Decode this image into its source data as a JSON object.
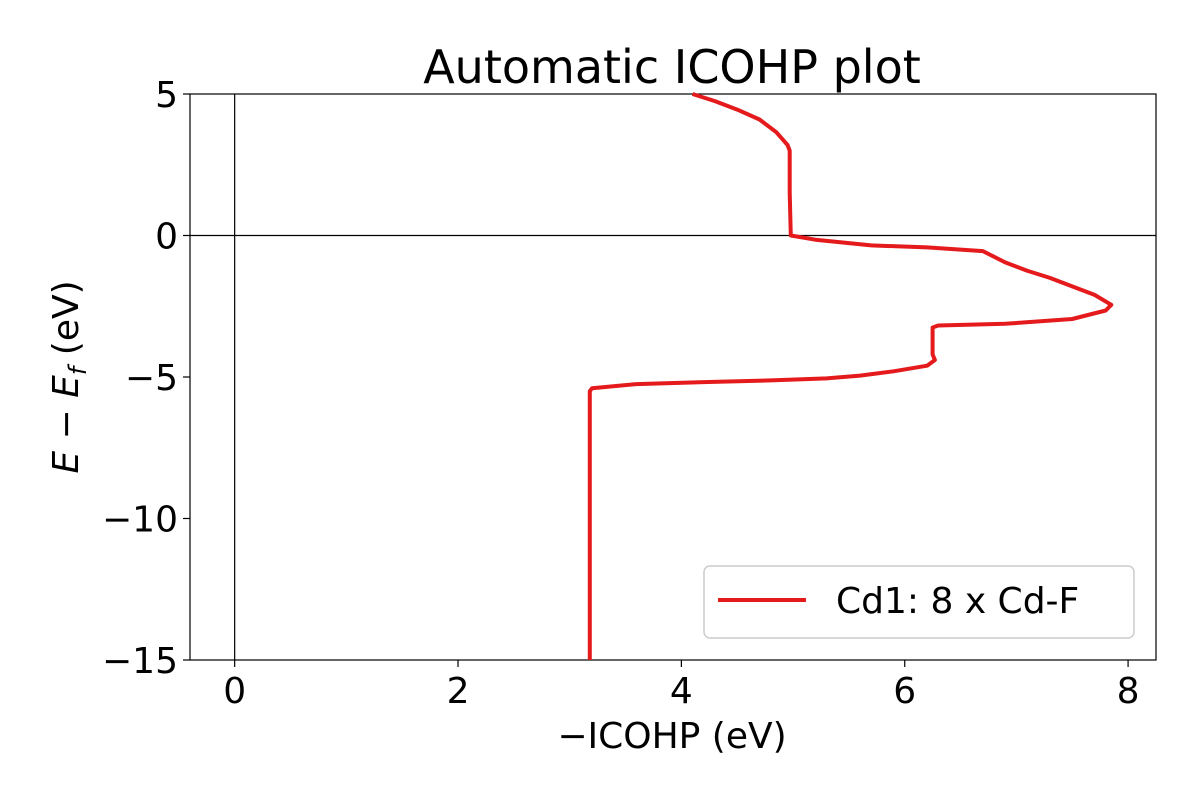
{
  "chart_data": {
    "type": "line",
    "title": "Automatic ICOHP plot",
    "xlabel": "−ICOHP (eV)",
    "ylabel": "E − E_f (eV)",
    "xlim": [
      -0.4,
      8.25
    ],
    "ylim": [
      -15,
      5
    ],
    "xticks": [
      0,
      2,
      4,
      6,
      8
    ],
    "xtick_labels": [
      "0",
      "2",
      "4",
      "6",
      "8"
    ],
    "yticks": [
      5,
      0,
      -5,
      -10,
      -15
    ],
    "ytick_labels": [
      "5",
      "0",
      "−5",
      "−10",
      "−15"
    ],
    "grid": false,
    "zero_lines": true,
    "legend_position": "lower-right",
    "series": [
      {
        "name": "Cd1: 8 x Cd-F",
        "color": "#e41a1c",
        "x": [
          3.18,
          3.18,
          3.18,
          3.2,
          3.6,
          4.2,
          4.8,
          5.3,
          5.6,
          5.9,
          6.2,
          6.27,
          6.25,
          6.25,
          6.3,
          6.9,
          7.5,
          7.8,
          7.85,
          7.7,
          7.5,
          7.3,
          7.1,
          6.9,
          6.7,
          6.2,
          5.7,
          5.2,
          4.98,
          4.97,
          4.97,
          4.95,
          4.85,
          4.7,
          4.5,
          4.3,
          4.1
        ],
        "y": [
          -15,
          -10,
          -5.5,
          -5.4,
          -5.25,
          -5.18,
          -5.12,
          -5.05,
          -4.95,
          -4.8,
          -4.6,
          -4.4,
          -4.2,
          -3.25,
          -3.18,
          -3.12,
          -2.95,
          -2.65,
          -2.45,
          -2.1,
          -1.8,
          -1.5,
          -1.25,
          -0.95,
          -0.55,
          -0.42,
          -0.35,
          -0.15,
          0.0,
          1.5,
          3.0,
          3.2,
          3.65,
          4.1,
          4.45,
          4.75,
          5.0
        ]
      }
    ]
  }
}
